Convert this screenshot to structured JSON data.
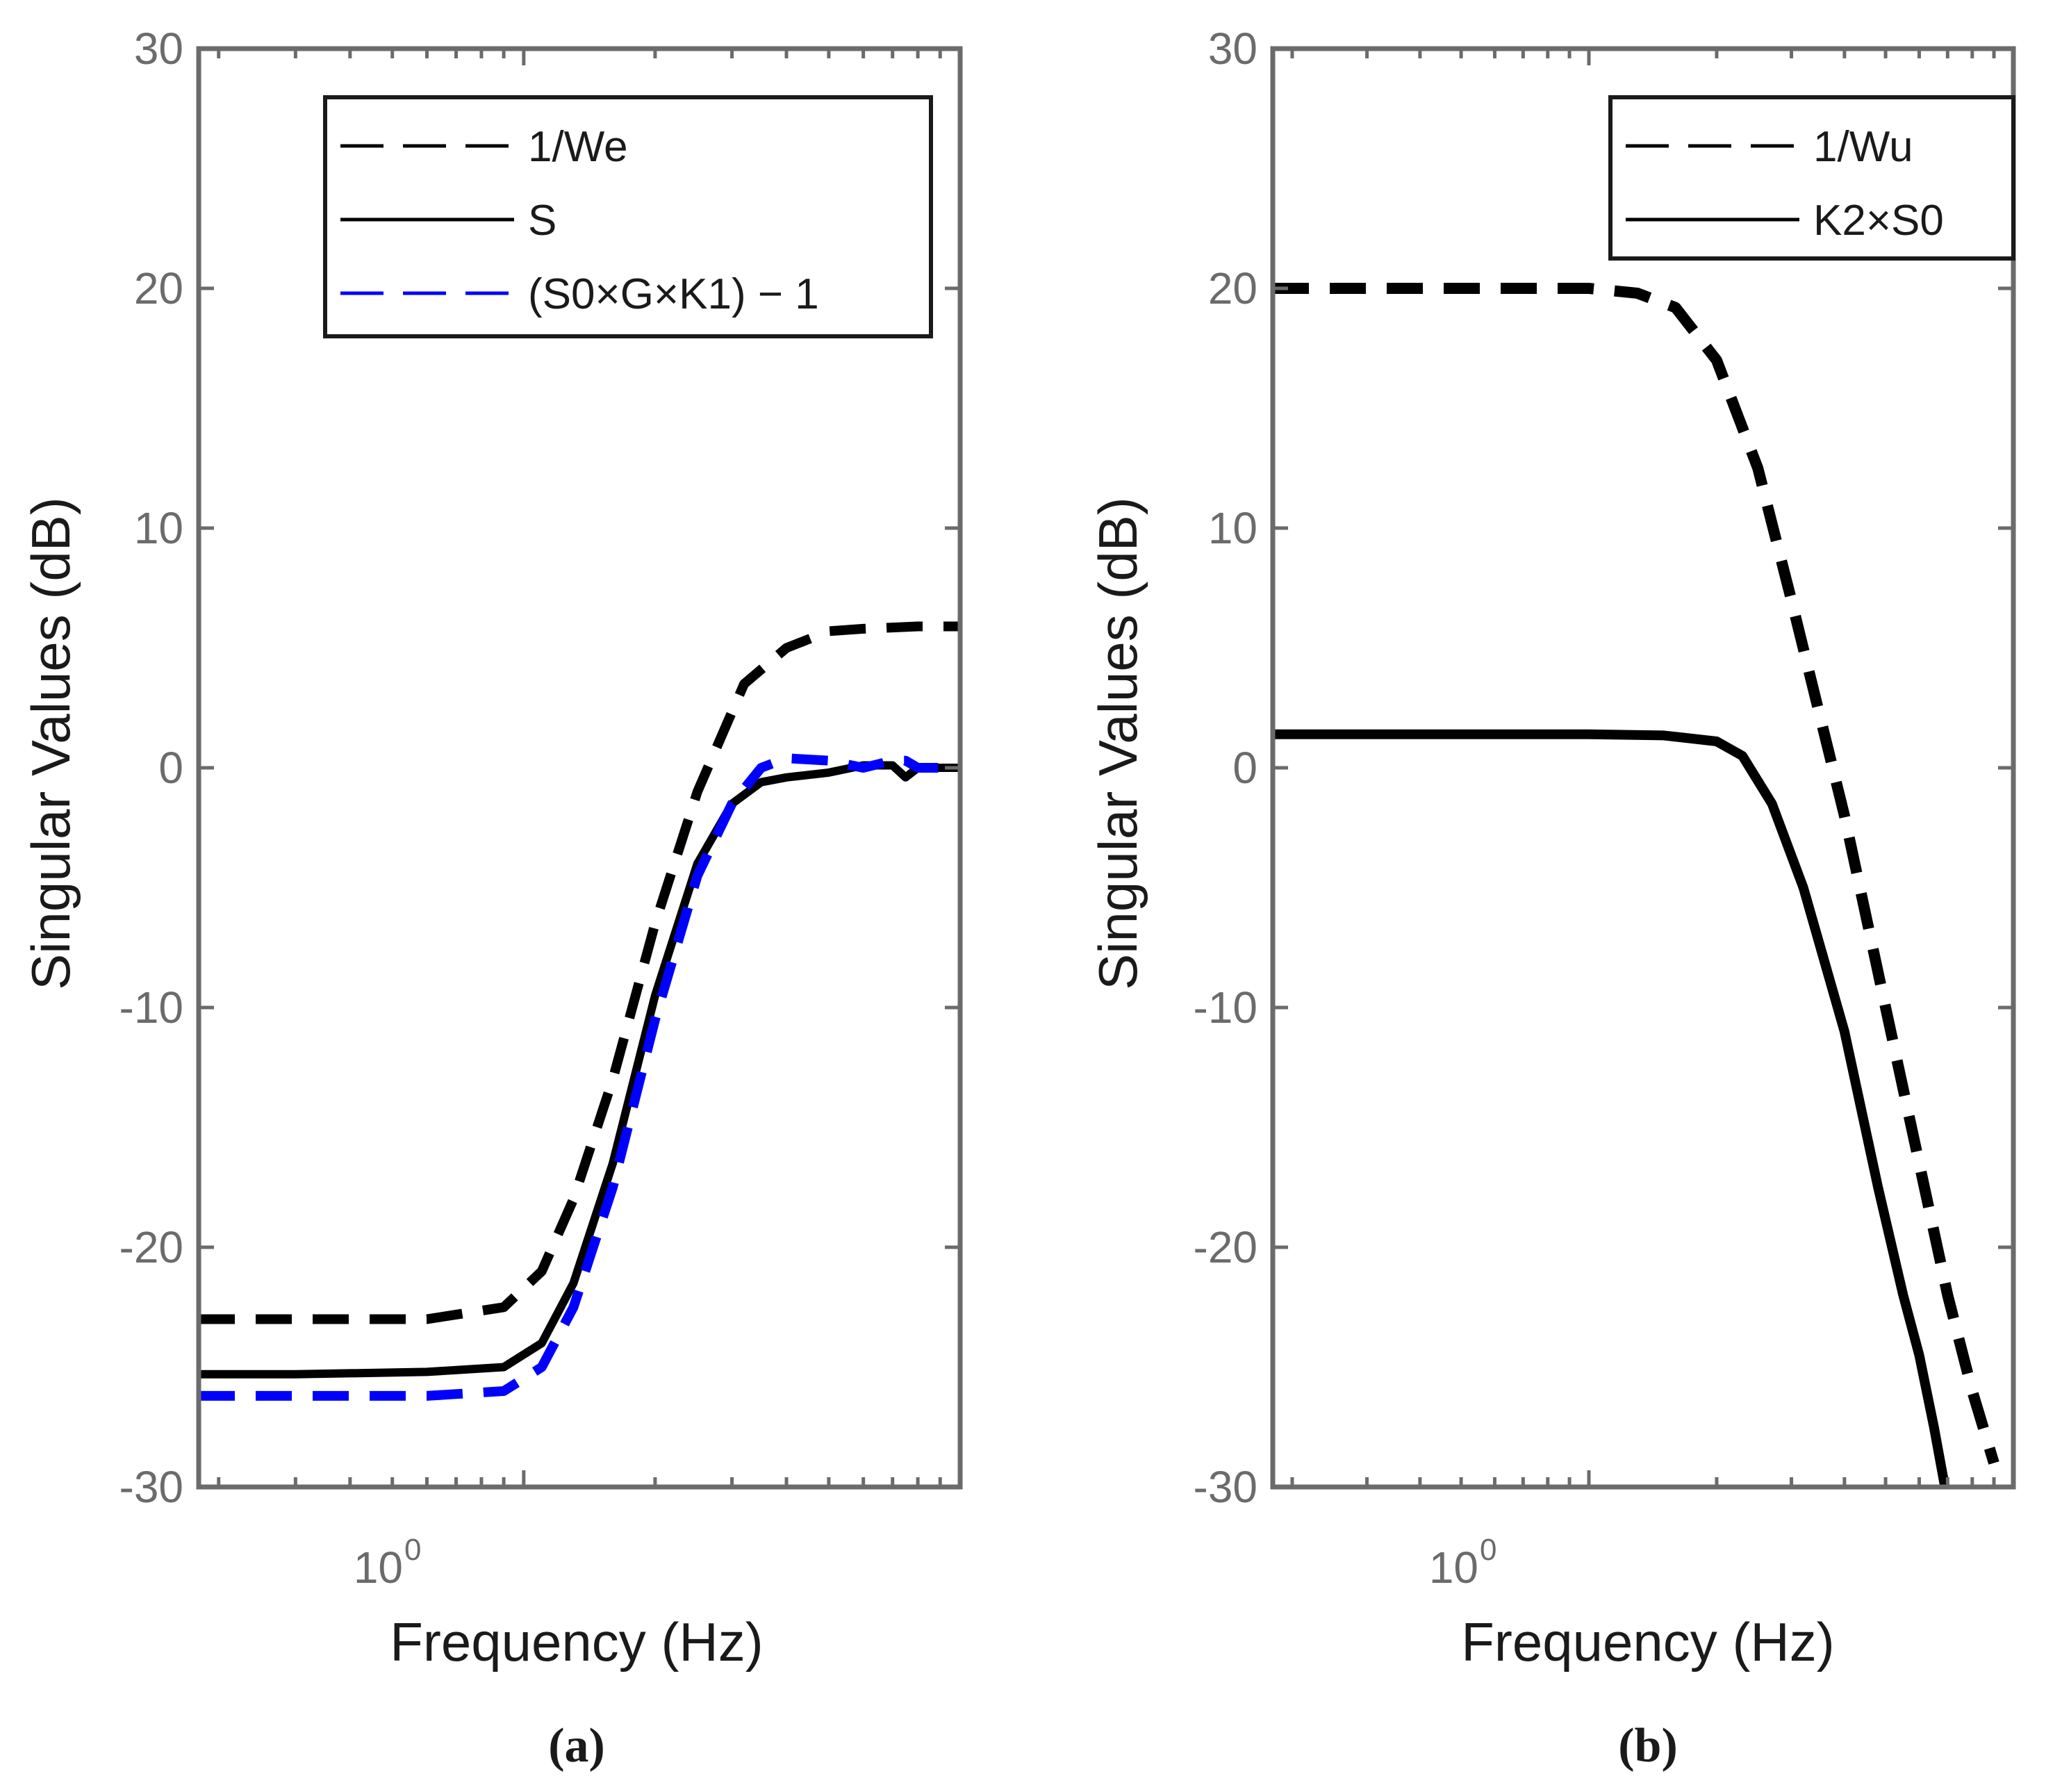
{
  "chart_data": [
    {
      "type": "line",
      "panel": "a",
      "caption": "(a)",
      "xlabel": "Frequency (Hz)",
      "ylabel": "Singular Values (dB)",
      "xscale": "log",
      "xlim": [
        0.18,
        10
      ],
      "ylim": [
        -30,
        30
      ],
      "yticks": [
        "30",
        "20",
        "10",
        "0",
        "-10",
        "-20",
        "-30"
      ],
      "xtick": {
        "base": "10",
        "exp": "0",
        "value": 1
      },
      "legend_position": "top-right",
      "series": [
        {
          "name": "1/We",
          "style": "dashed",
          "color": "#000000",
          "x": [
            0.18,
            0.3,
            0.6,
            0.9,
            1.1,
            1.3,
            1.6,
            2.0,
            2.5,
            3.2,
            4.0,
            5.0,
            6.0,
            8.0,
            10.0
          ],
          "y": [
            -23.0,
            -23.0,
            -23.0,
            -22.5,
            -21.0,
            -18.0,
            -13.0,
            -6.5,
            -1.0,
            3.5,
            5.0,
            5.7,
            5.8,
            5.9,
            5.9
          ]
        },
        {
          "name": "S",
          "style": "solid",
          "color": "#000000",
          "x": [
            0.18,
            0.3,
            0.6,
            0.9,
            1.1,
            1.3,
            1.6,
            2.0,
            2.5,
            3.0,
            3.5,
            4.0,
            5.0,
            6.0,
            7.0,
            7.5,
            8.0,
            10.0
          ],
          "y": [
            -25.3,
            -25.3,
            -25.2,
            -25.0,
            -24.0,
            -21.5,
            -16.5,
            -9.5,
            -4.0,
            -1.5,
            -0.6,
            -0.4,
            -0.2,
            0.1,
            0.1,
            -0.4,
            0.0,
            0.0
          ]
        },
        {
          "name": "(S0×G×K1) − 1",
          "style": "dashed",
          "color": "#0000ff",
          "x": [
            0.18,
            0.3,
            0.6,
            0.9,
            1.1,
            1.3,
            1.6,
            2.0,
            2.5,
            3.0,
            3.5,
            4.0,
            5.0,
            6.0,
            7.0,
            7.5,
            8.0,
            10.0
          ],
          "y": [
            -26.2,
            -26.2,
            -26.2,
            -26.0,
            -25.0,
            -22.5,
            -17.5,
            -10.5,
            -4.5,
            -1.5,
            0.0,
            0.4,
            0.3,
            0.0,
            0.3,
            0.3,
            0.0,
            0.0
          ]
        }
      ]
    },
    {
      "type": "line",
      "panel": "b",
      "caption": "(b)",
      "xlabel": "Frequency (Hz)",
      "ylabel": "Singular Values (dB)",
      "xscale": "log",
      "xlim": [
        0.18,
        10
      ],
      "ylim": [
        -30,
        30
      ],
      "yticks": [
        "30",
        "20",
        "10",
        "0",
        "-10",
        "-20",
        "-30"
      ],
      "xtick": {
        "base": "10",
        "exp": "0",
        "value": 1
      },
      "legend_position": "top-right",
      "series": [
        {
          "name": "1/Wu",
          "style": "dashed",
          "color": "#000000",
          "x": [
            0.18,
            0.3,
            0.6,
            1.0,
            1.3,
            1.6,
            2.0,
            2.5,
            3.0,
            4.0,
            5.0,
            6.0,
            7.0,
            8.0,
            9.0
          ],
          "y": [
            20.0,
            20.0,
            20.0,
            20.0,
            19.8,
            19.2,
            17.0,
            12.5,
            7.0,
            -2.0,
            -10.0,
            -16.5,
            -22.0,
            -26.0,
            -29.0
          ]
        },
        {
          "name": "K2×S0",
          "style": "solid",
          "color": "#000000",
          "x": [
            0.18,
            0.5,
            1.0,
            1.5,
            2.0,
            2.3,
            2.7,
            3.2,
            4.0,
            4.8,
            5.5,
            6.0,
            6.5,
            6.9
          ],
          "y": [
            1.4,
            1.4,
            1.4,
            1.35,
            1.1,
            0.5,
            -1.5,
            -5.0,
            -11.0,
            -17.5,
            -22.0,
            -24.5,
            -27.5,
            -30.0
          ]
        }
      ]
    }
  ]
}
